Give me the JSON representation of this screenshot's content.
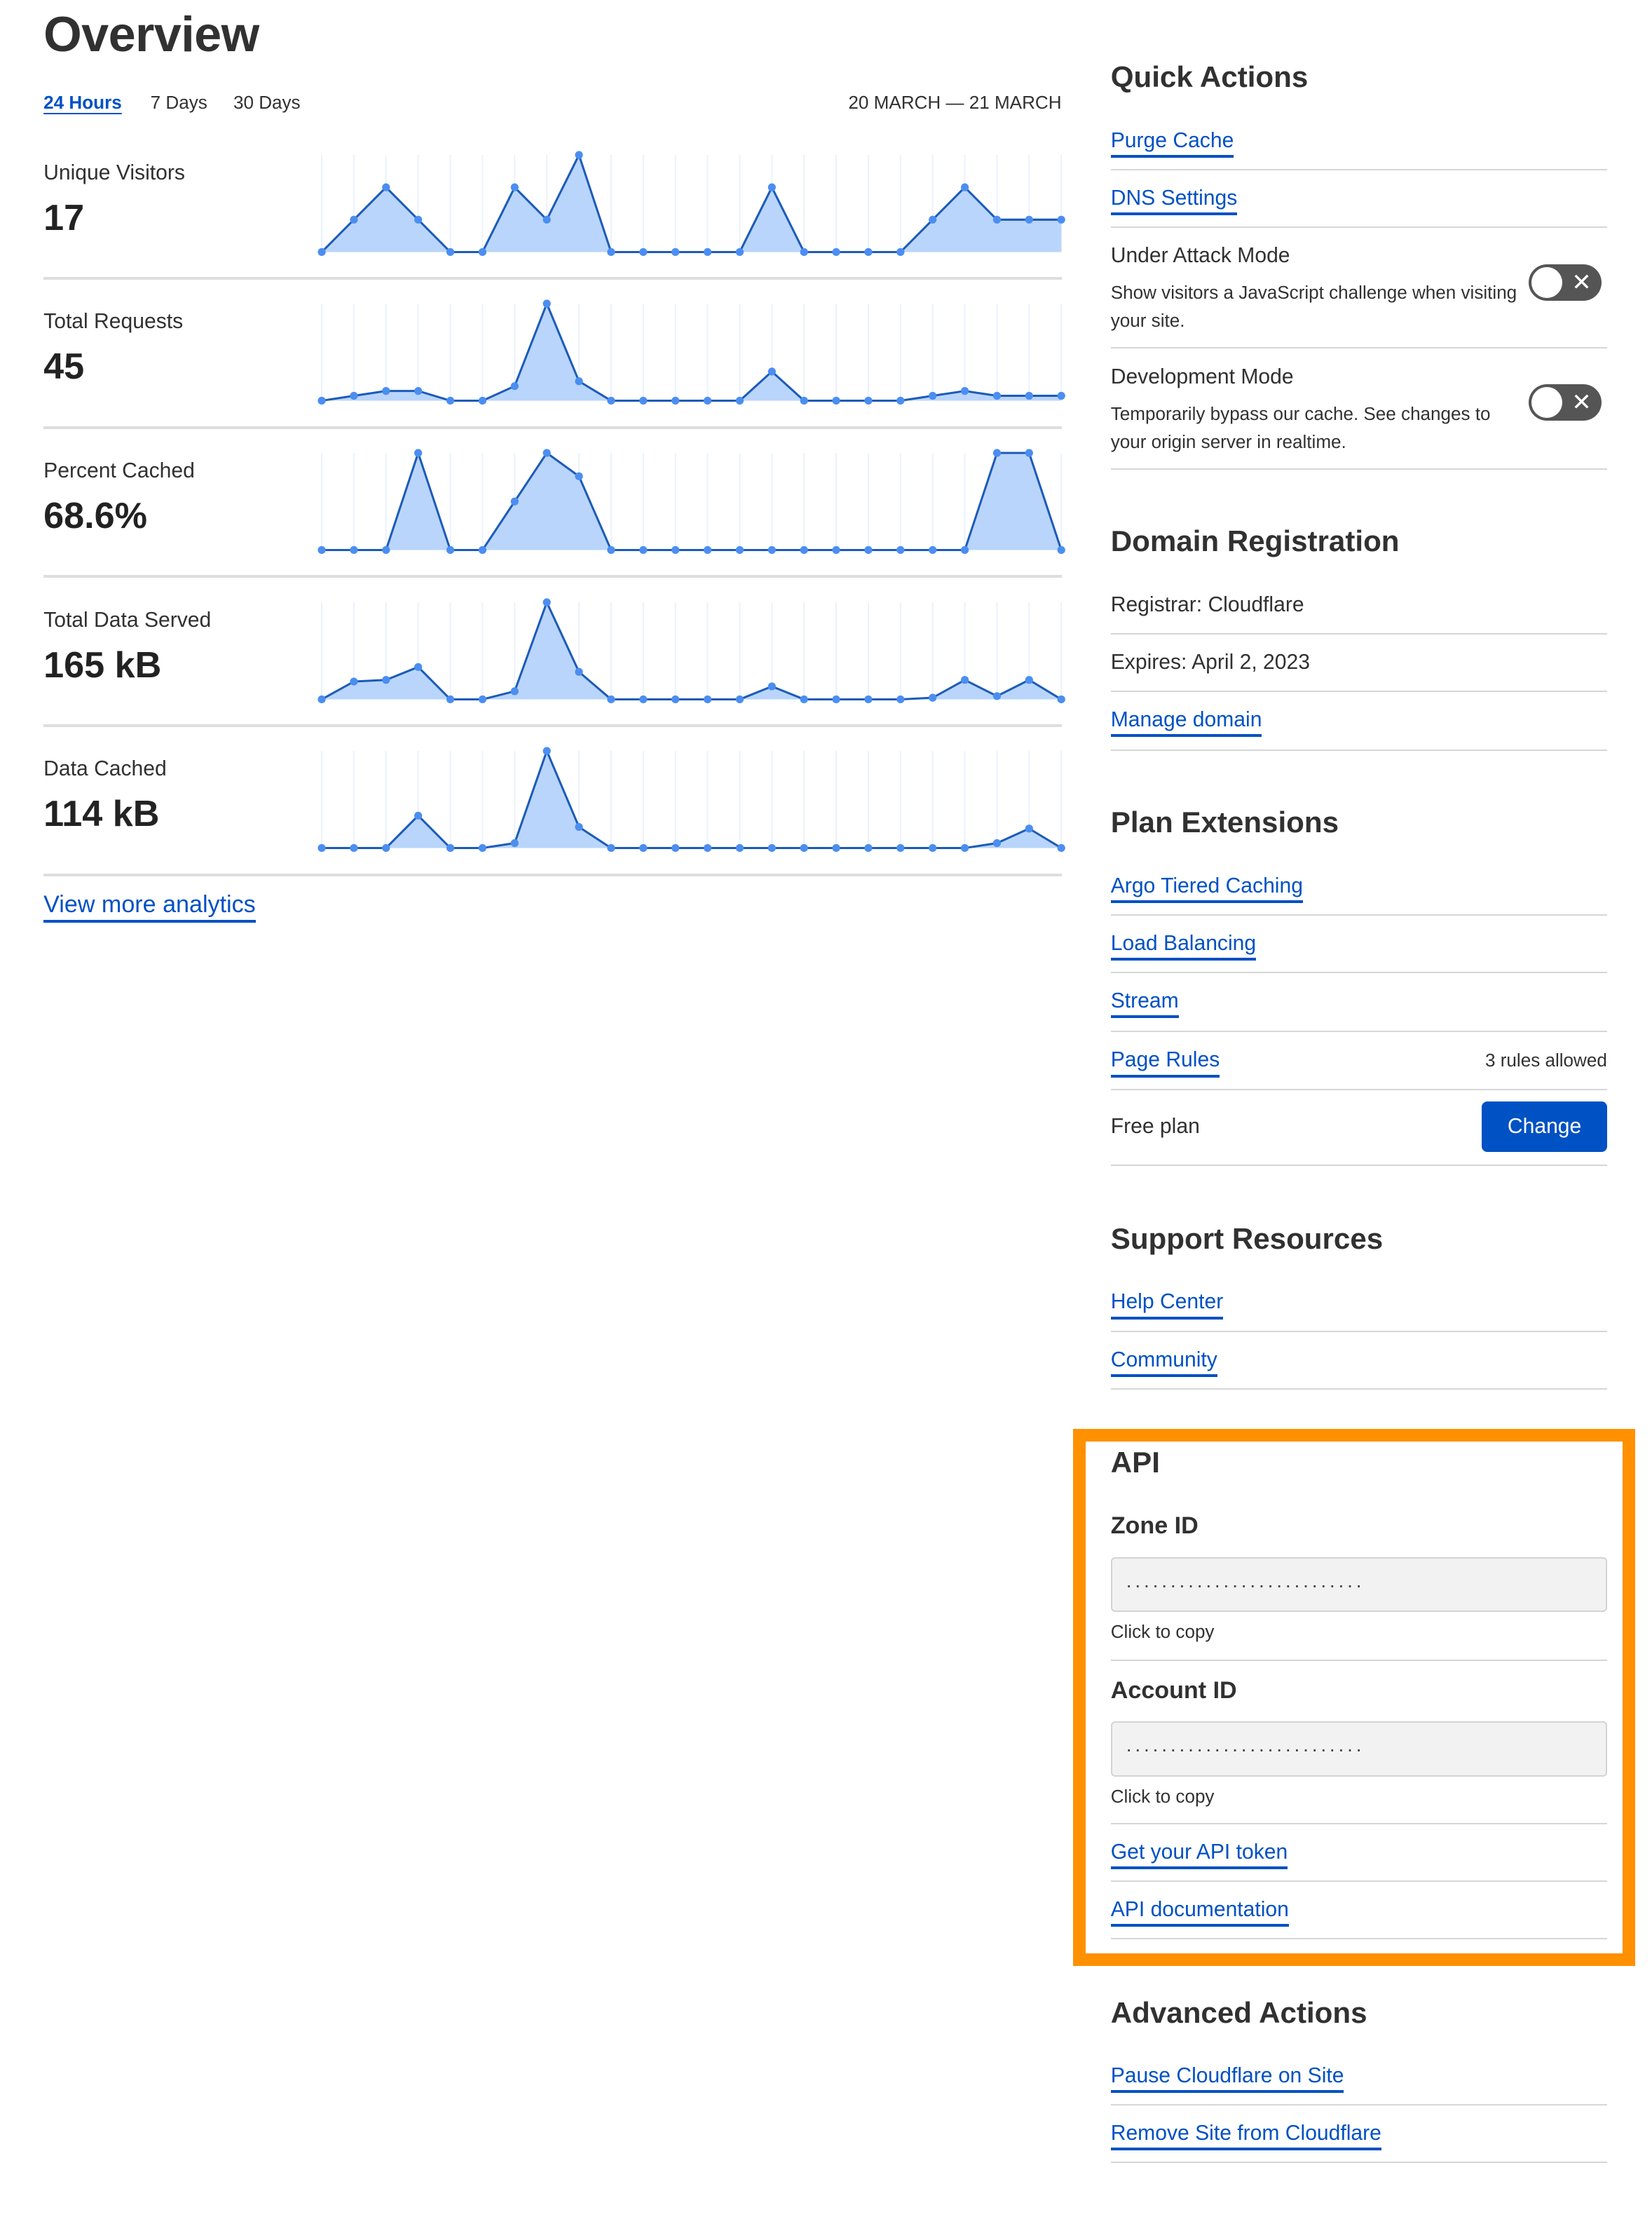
{
  "overview": {
    "title": "Overview",
    "tabs": [
      {
        "label": "24 Hours",
        "active": true
      },
      {
        "label": "7 Days",
        "active": false
      },
      {
        "label": "30 Days",
        "active": false
      }
    ],
    "date_range": "20 MARCH — 21 MARCH",
    "metrics": [
      {
        "label": "Unique Visitors",
        "value": "17"
      },
      {
        "label": "Total Requests",
        "value": "45"
      },
      {
        "label": "Percent Cached",
        "value": "68.6%"
      },
      {
        "label": "Total Data Served",
        "value": "165 kB"
      },
      {
        "label": "Data Cached",
        "value": "114 kB"
      }
    ],
    "view_more_label": "View more analytics"
  },
  "chart_data": [
    {
      "type": "area",
      "metric": "Unique Visitors",
      "values": [
        0,
        1,
        2,
        1,
        0,
        0,
        2,
        1,
        3,
        0,
        0,
        0,
        0,
        0,
        2,
        0,
        0,
        0,
        0,
        1,
        2,
        1,
        1,
        1
      ],
      "grid": true
    },
    {
      "type": "area",
      "metric": "Total Requests",
      "values": [
        0,
        1,
        2,
        2,
        0,
        0,
        3,
        20,
        4,
        0,
        0,
        0,
        0,
        0,
        6,
        0,
        0,
        0,
        0,
        1,
        2,
        1,
        1,
        1
      ],
      "grid": true
    },
    {
      "type": "area",
      "metric": "Percent Cached",
      "values": [
        0,
        0,
        0,
        100,
        0,
        0,
        50,
        100,
        76,
        0,
        0,
        0,
        0,
        0,
        0,
        0,
        0,
        0,
        0,
        0,
        0,
        100,
        100,
        0
      ],
      "grid": true
    },
    {
      "type": "area",
      "metric": "Total Data Served",
      "values": [
        0,
        11,
        12,
        20,
        0,
        0,
        5,
        60,
        17,
        0,
        0,
        0,
        0,
        0,
        8,
        0,
        0,
        0,
        0,
        1,
        12,
        2,
        12,
        0
      ],
      "grid": true
    },
    {
      "type": "area",
      "metric": "Data Cached",
      "values": [
        0,
        0,
        0,
        20,
        0,
        0,
        3,
        60,
        13,
        0,
        0,
        0,
        0,
        0,
        0,
        0,
        0,
        0,
        0,
        0,
        0,
        3,
        12,
        0
      ],
      "grid": true
    }
  ],
  "colors": {
    "line": "#1c5bb8",
    "fill": "#b9d5fb",
    "dot": "#4b8ef1",
    "grid": "#eaf2fd",
    "link": "#0051c3",
    "highlight": "#ff9000",
    "toggle_off": "#555555"
  },
  "quick_actions": {
    "title": "Quick Actions",
    "purge_cache": "Purge Cache",
    "dns_settings": "DNS Settings",
    "under_attack": {
      "label": "Under Attack Mode",
      "desc": "Show visitors a JavaScript challenge when visiting your site.",
      "enabled": false,
      "icon": "x-icon"
    },
    "dev_mode": {
      "label": "Development Mode",
      "desc": "Temporarily bypass our cache. See changes to your origin server in realtime.",
      "enabled": false,
      "icon": "x-icon"
    },
    "toggle_glyph": "✕"
  },
  "domain_registration": {
    "title": "Domain Registration",
    "registrar": "Registrar: Cloudflare",
    "expires": "Expires: April 2, 2023",
    "manage": "Manage domain"
  },
  "plan_extensions": {
    "title": "Plan Extensions",
    "argo": "Argo Tiered Caching",
    "load_balancing": "Load Balancing",
    "stream": "Stream",
    "page_rules": "Page Rules",
    "page_rules_note": "3 rules allowed",
    "plan": "Free plan",
    "change": "Change"
  },
  "support": {
    "title": "Support Resources",
    "help_center": "Help Center",
    "community": "Community"
  },
  "api": {
    "title": "API",
    "zone_id_label": "Zone ID",
    "zone_id_value": "...........................",
    "account_id_label": "Account ID",
    "account_id_value": "...........................",
    "copy_hint": "Click to copy",
    "get_token": "Get your API token",
    "docs": "API documentation"
  },
  "advanced": {
    "title": "Advanced Actions",
    "pause": "Pause Cloudflare on Site",
    "remove": "Remove Site from Cloudflare"
  }
}
